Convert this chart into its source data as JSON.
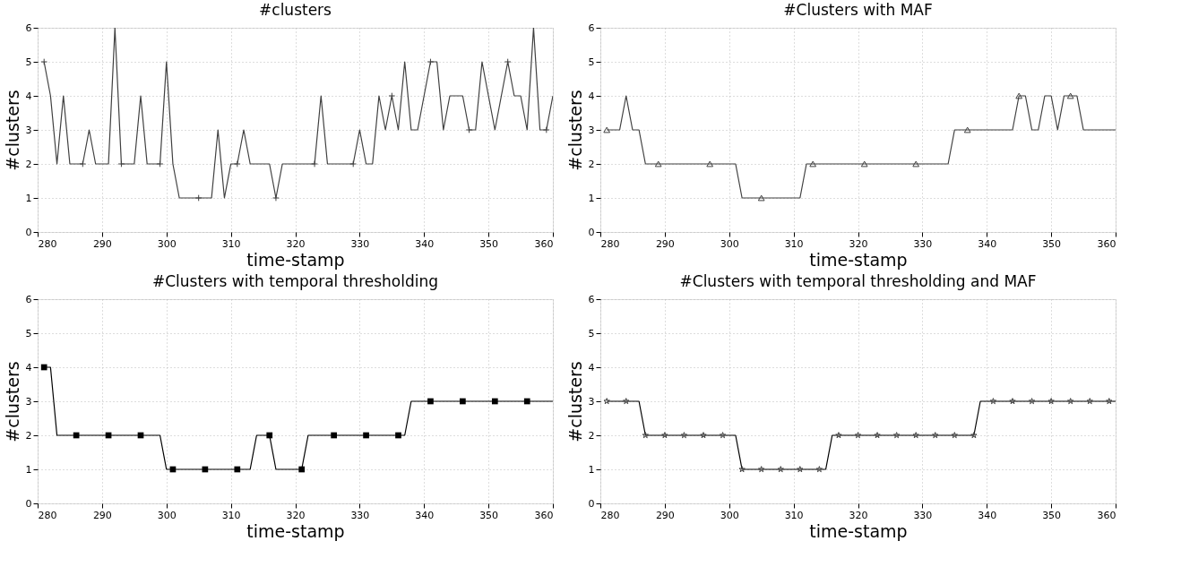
{
  "chart_data": [
    {
      "type": "line",
      "title": "#clusters",
      "xlabel": "time-stamp",
      "ylabel": "#clusters",
      "xlim": [
        280,
        360
      ],
      "ylim": [
        0,
        6
      ],
      "xticks": [
        280,
        290,
        300,
        310,
        320,
        330,
        340,
        350,
        360
      ],
      "yticks": [
        0,
        1,
        2,
        3,
        4,
        5,
        6
      ],
      "grid": true,
      "series": [
        {
          "color": "#404040",
          "marker": "none",
          "x": [
            281,
            282,
            283,
            284,
            285,
            286,
            287,
            288,
            289,
            290,
            291,
            292,
            293,
            294,
            295,
            296,
            297,
            298,
            299,
            300,
            301,
            302,
            303,
            304,
            305,
            306,
            307,
            308,
            309,
            310,
            311,
            312,
            313,
            314,
            315,
            316,
            317,
            318,
            319,
            320,
            321,
            322,
            323,
            324,
            325,
            326,
            327,
            328,
            329,
            330,
            331,
            332,
            333,
            334,
            335,
            336,
            337,
            338,
            339,
            340,
            341,
            342,
            343,
            344,
            345,
            346,
            347,
            348,
            349,
            350,
            351,
            352,
            353,
            354,
            355,
            356,
            357,
            358,
            359,
            360
          ],
          "values": [
            5,
            4,
            2,
            4,
            2,
            2,
            2,
            3,
            2,
            2,
            2,
            6,
            2,
            2,
            2,
            4,
            2,
            2,
            2,
            5,
            2,
            1,
            1,
            1,
            1,
            1,
            1,
            3,
            1,
            2,
            2,
            3,
            2,
            2,
            2,
            2,
            1,
            2,
            2,
            2,
            2,
            2,
            2,
            4,
            2,
            2,
            2,
            2,
            2,
            3,
            2,
            2,
            4,
            3,
            4,
            3,
            5,
            3,
            3,
            4,
            5,
            5,
            3,
            4,
            4,
            4,
            3,
            3,
            5,
            4,
            3,
            4,
            5,
            4,
            4,
            3,
            6,
            3,
            3,
            4
          ]
        },
        {
          "type": "scatter",
          "color": "#404040",
          "marker": "cross",
          "x": [
            281,
            287,
            293,
            299,
            305,
            311,
            317,
            323,
            329,
            335,
            341,
            347,
            353,
            359
          ],
          "values": [
            5,
            2,
            2,
            2,
            1,
            2,
            1,
            2,
            2,
            4,
            5,
            3,
            5,
            3
          ]
        }
      ]
    },
    {
      "type": "line",
      "title": "#Clusters with MAF",
      "xlabel": "time-stamp",
      "ylabel": "#clusters",
      "xlim": [
        280,
        360
      ],
      "ylim": [
        0,
        6
      ],
      "xticks": [
        280,
        290,
        300,
        310,
        320,
        330,
        340,
        350,
        360
      ],
      "yticks": [
        0,
        1,
        2,
        3,
        4,
        5,
        6
      ],
      "grid": true,
      "series": [
        {
          "color": "#404040",
          "marker": "none",
          "x": [
            281,
            282,
            283,
            284,
            285,
            286,
            287,
            288,
            289,
            290,
            291,
            292,
            293,
            294,
            295,
            296,
            297,
            298,
            299,
            300,
            301,
            302,
            303,
            304,
            305,
            306,
            307,
            308,
            309,
            310,
            311,
            312,
            313,
            314,
            315,
            316,
            317,
            318,
            319,
            320,
            321,
            322,
            323,
            324,
            325,
            326,
            327,
            328,
            329,
            330,
            331,
            332,
            333,
            334,
            335,
            336,
            337,
            338,
            339,
            340,
            341,
            342,
            343,
            344,
            345,
            346,
            347,
            348,
            349,
            350,
            351,
            352,
            353,
            354,
            355,
            356,
            357,
            358,
            359,
            360
          ],
          "values": [
            3,
            3,
            3,
            4,
            3,
            3,
            2,
            2,
            2,
            2,
            2,
            2,
            2,
            2,
            2,
            2,
            2,
            2,
            2,
            2,
            2,
            1,
            1,
            1,
            1,
            1,
            1,
            1,
            1,
            1,
            1,
            2,
            2,
            2,
            2,
            2,
            2,
            2,
            2,
            2,
            2,
            2,
            2,
            2,
            2,
            2,
            2,
            2,
            2,
            2,
            2,
            2,
            2,
            2,
            3,
            3,
            3,
            3,
            3,
            3,
            3,
            3,
            3,
            3,
            4,
            4,
            3,
            3,
            4,
            4,
            3,
            4,
            4,
            4,
            3,
            3,
            3,
            3,
            3,
            3
          ]
        },
        {
          "type": "scatter",
          "color": "#404040",
          "marker": "triangle",
          "x": [
            281,
            289,
            297,
            305,
            313,
            321,
            329,
            337,
            345,
            353
          ],
          "values": [
            3,
            2,
            2,
            1,
            2,
            2,
            2,
            3,
            4,
            4
          ]
        }
      ]
    },
    {
      "type": "line",
      "title": "#Clusters with temporal thresholding",
      "xlabel": "time-stamp",
      "ylabel": "#clusters",
      "xlim": [
        280,
        360
      ],
      "ylim": [
        0,
        6
      ],
      "xticks": [
        280,
        290,
        300,
        310,
        320,
        330,
        340,
        350,
        360
      ],
      "yticks": [
        0,
        1,
        2,
        3,
        4,
        5,
        6
      ],
      "grid": true,
      "series": [
        {
          "color": "#000000",
          "marker": "none",
          "x": [
            281,
            282,
            283,
            284,
            285,
            286,
            287,
            288,
            289,
            290,
            291,
            292,
            293,
            294,
            295,
            296,
            297,
            298,
            299,
            300,
            301,
            302,
            303,
            304,
            305,
            306,
            307,
            308,
            309,
            310,
            311,
            312,
            313,
            314,
            315,
            316,
            317,
            318,
            319,
            320,
            321,
            322,
            323,
            324,
            325,
            326,
            327,
            328,
            329,
            330,
            331,
            332,
            333,
            334,
            335,
            336,
            337,
            338,
            339,
            340,
            341,
            342,
            343,
            344,
            345,
            346,
            347,
            348,
            349,
            350,
            351,
            352,
            353,
            354,
            355,
            356,
            357,
            358,
            359,
            360
          ],
          "values": [
            4,
            4,
            2,
            2,
            2,
            2,
            2,
            2,
            2,
            2,
            2,
            2,
            2,
            2,
            2,
            2,
            2,
            2,
            2,
            1,
            1,
            1,
            1,
            1,
            1,
            1,
            1,
            1,
            1,
            1,
            1,
            1,
            1,
            2,
            2,
            2,
            1,
            1,
            1,
            1,
            1,
            2,
            2,
            2,
            2,
            2,
            2,
            2,
            2,
            2,
            2,
            2,
            2,
            2,
            2,
            2,
            2,
            3,
            3,
            3,
            3,
            3,
            3,
            3,
            3,
            3,
            3,
            3,
            3,
            3,
            3,
            3,
            3,
            3,
            3,
            3,
            3,
            3,
            3,
            3
          ]
        },
        {
          "type": "scatter",
          "color": "#000000",
          "marker": "square",
          "x": [
            281,
            286,
            291,
            296,
            301,
            306,
            311,
            316,
            321,
            326,
            331,
            336,
            341,
            346,
            351,
            356
          ],
          "values": [
            4,
            2,
            2,
            2,
            1,
            1,
            1,
            2,
            1,
            2,
            2,
            2,
            3,
            3,
            3,
            3
          ]
        }
      ]
    },
    {
      "type": "line",
      "title": "#Clusters with temporal thresholding and MAF",
      "xlabel": "time-stamp",
      "ylabel": "#clusters",
      "xlim": [
        280,
        360
      ],
      "ylim": [
        0,
        6
      ],
      "xticks": [
        280,
        290,
        300,
        310,
        320,
        330,
        340,
        350,
        360
      ],
      "yticks": [
        0,
        1,
        2,
        3,
        4,
        5,
        6
      ],
      "grid": true,
      "series": [
        {
          "color": "#000000",
          "marker": "none",
          "x": [
            281,
            282,
            283,
            284,
            285,
            286,
            287,
            288,
            289,
            290,
            291,
            292,
            293,
            294,
            295,
            296,
            297,
            298,
            299,
            300,
            301,
            302,
            303,
            304,
            305,
            306,
            307,
            308,
            309,
            310,
            311,
            312,
            313,
            314,
            315,
            316,
            317,
            318,
            319,
            320,
            321,
            322,
            323,
            324,
            325,
            326,
            327,
            328,
            329,
            330,
            331,
            332,
            333,
            334,
            335,
            336,
            337,
            338,
            339,
            340,
            341,
            342,
            343,
            344,
            345,
            346,
            347,
            348,
            349,
            350,
            351,
            352,
            353,
            354,
            355,
            356,
            357,
            358,
            359,
            360
          ],
          "values": [
            3,
            3,
            3,
            3,
            3,
            3,
            2,
            2,
            2,
            2,
            2,
            2,
            2,
            2,
            2,
            2,
            2,
            2,
            2,
            2,
            2,
            1,
            1,
            1,
            1,
            1,
            1,
            1,
            1,
            1,
            1,
            1,
            1,
            1,
            1,
            2,
            2,
            2,
            2,
            2,
            2,
            2,
            2,
            2,
            2,
            2,
            2,
            2,
            2,
            2,
            2,
            2,
            2,
            2,
            2,
            2,
            2,
            2,
            3,
            3,
            3,
            3,
            3,
            3,
            3,
            3,
            3,
            3,
            3,
            3,
            3,
            3,
            3,
            3,
            3,
            3,
            3,
            3,
            3,
            3
          ]
        },
        {
          "type": "scatter",
          "color": "#404040",
          "marker": "star",
          "x": [
            281,
            284,
            287,
            290,
            293,
            296,
            299,
            302,
            305,
            308,
            311,
            314,
            317,
            320,
            323,
            326,
            329,
            332,
            335,
            338,
            341,
            344,
            347,
            350,
            353,
            356,
            359
          ],
          "values": [
            3,
            3,
            2,
            2,
            2,
            2,
            2,
            1,
            1,
            1,
            1,
            1,
            2,
            2,
            2,
            2,
            2,
            2,
            2,
            2,
            3,
            3,
            3,
            3,
            3,
            3,
            3
          ]
        }
      ]
    }
  ]
}
